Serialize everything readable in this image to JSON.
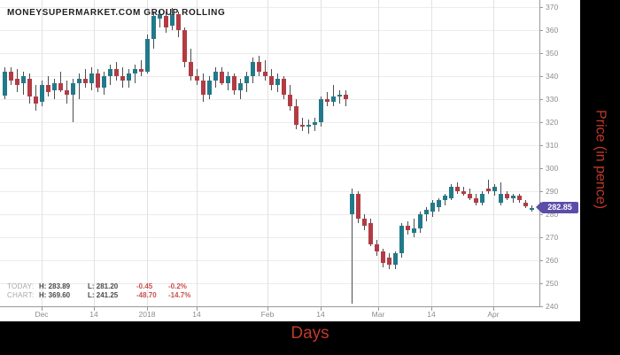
{
  "title": "MONEYSUPERMARKET.COM GROUP ROLLING",
  "price_badge": {
    "value": "282.85"
  },
  "stats": {
    "rows": [
      {
        "label": "TODAY:",
        "high": "H: 283.89",
        "low": "L: 281.20",
        "change": "-0.45",
        "percent": "-0.2%"
      },
      {
        "label": "CHART:",
        "high": "H: 369.60",
        "low": "L: 241.25",
        "change": "-48.70",
        "percent": "-14.7%"
      }
    ]
  },
  "axes": {
    "x_label": "Days",
    "y_label": "Price (in pence)"
  },
  "colors": {
    "up": "#217a8a",
    "down": "#b23b44",
    "badge": "#5b4ea8",
    "axis_text": "#8c8c8c",
    "accent_red_text": "#c0392b",
    "stat_change_red": "#c94f4f"
  },
  "chart_data": {
    "type": "candlestick",
    "title": "MONEYSUPERMARKET.COM GROUP ROLLING",
    "xlabel": "Days",
    "ylabel": "Price (in pence)",
    "ylim": [
      240,
      370
    ],
    "grid": true,
    "last_price": 282.85,
    "chart_high": 369.6,
    "chart_low": 241.25,
    "today_high": 283.89,
    "today_low": 281.2,
    "y_ticks": [
      240,
      250,
      260,
      270,
      280,
      290,
      300,
      310,
      320,
      330,
      340,
      350,
      360,
      370
    ],
    "x_ticks": [
      {
        "label": "Dec",
        "x": 47
      },
      {
        "label": "14",
        "x": 106
      },
      {
        "label": "2018",
        "x": 166
      },
      {
        "label": "14",
        "x": 222
      },
      {
        "label": "Feb",
        "x": 302
      },
      {
        "label": "14",
        "x": 362
      },
      {
        "label": "Mar",
        "x": 427
      },
      {
        "label": "14",
        "x": 487
      },
      {
        "label": "Apr",
        "x": 557
      }
    ],
    "candles_format": [
      "open",
      "high",
      "low",
      "close"
    ],
    "candles": [
      [
        331.55,
        344,
        330,
        342
      ],
      [
        342,
        344,
        336,
        338
      ],
      [
        339,
        343,
        333,
        336
      ],
      [
        337,
        342,
        332,
        340
      ],
      [
        339,
        341,
        328,
        331
      ],
      [
        331,
        336,
        325,
        328
      ],
      [
        329,
        338,
        327,
        336
      ],
      [
        336,
        340,
        331,
        333
      ],
      [
        334,
        339,
        330,
        337
      ],
      [
        337,
        342,
        333,
        334
      ],
      [
        334,
        338,
        328,
        332
      ],
      [
        332,
        339,
        320,
        337
      ],
      [
        337,
        341,
        330,
        339
      ],
      [
        339,
        343,
        335,
        337
      ],
      [
        337,
        344,
        334,
        341
      ],
      [
        341,
        343,
        333,
        335
      ],
      [
        335,
        342,
        332,
        340
      ],
      [
        340,
        345,
        336,
        343
      ],
      [
        343,
        346,
        338,
        340
      ],
      [
        340,
        344,
        335,
        338
      ],
      [
        338,
        343,
        335,
        341
      ],
      [
        341,
        345,
        337,
        343
      ],
      [
        343,
        347,
        340,
        342
      ],
      [
        342,
        358,
        341,
        356
      ],
      [
        356,
        368,
        352,
        366
      ],
      [
        365,
        369,
        361,
        367
      ],
      [
        366,
        368,
        359,
        361
      ],
      [
        362,
        369.6,
        360,
        367
      ],
      [
        367,
        368,
        357,
        360
      ],
      [
        360,
        361,
        344,
        346
      ],
      [
        346,
        352,
        338,
        340
      ],
      [
        340,
        343,
        336,
        338
      ],
      [
        338,
        341,
        329,
        332
      ],
      [
        332,
        340,
        330,
        338
      ],
      [
        338,
        344,
        335,
        342
      ],
      [
        342,
        344,
        336,
        337
      ],
      [
        337,
        342,
        334,
        340
      ],
      [
        340,
        341,
        332,
        334
      ],
      [
        334,
        339,
        330,
        337
      ],
      [
        337,
        342,
        333,
        340
      ],
      [
        340,
        348,
        337,
        346
      ],
      [
        346,
        349,
        340,
        342
      ],
      [
        342,
        347,
        338,
        340
      ],
      [
        340,
        343,
        334,
        336
      ],
      [
        336,
        341,
        333,
        339
      ],
      [
        339,
        340,
        330,
        332
      ],
      [
        332,
        336,
        325,
        327
      ],
      [
        327,
        330,
        317,
        319
      ],
      [
        319,
        322,
        316,
        318
      ],
      [
        318,
        321,
        315,
        319
      ],
      [
        319,
        322,
        316,
        320
      ],
      [
        320,
        331,
        318,
        330
      ],
      [
        330,
        333,
        327,
        329
      ],
      [
        329,
        336,
        327,
        331
      ],
      [
        331,
        334,
        328,
        332
      ],
      [
        332,
        334,
        327,
        330
      ],
      [
        280,
        291,
        241.25,
        289
      ],
      [
        289,
        290,
        276,
        278
      ],
      [
        278,
        280,
        273,
        275
      ],
      [
        276,
        278,
        266,
        267
      ],
      [
        267,
        269,
        262,
        264
      ],
      [
        264,
        265,
        257,
        259
      ],
      [
        261,
        263,
        256,
        258
      ],
      [
        258,
        264,
        256,
        263
      ],
      [
        263,
        276,
        261,
        275
      ],
      [
        275,
        277,
        271,
        273
      ],
      [
        272,
        278,
        270,
        274
      ],
      [
        274,
        281,
        272,
        280
      ],
      [
        280,
        283,
        277,
        282
      ],
      [
        281,
        286,
        279,
        285
      ],
      [
        283,
        287,
        281,
        286
      ],
      [
        286,
        289,
        284,
        288
      ],
      [
        287,
        293,
        286,
        292
      ],
      [
        292,
        294,
        289,
        290
      ],
      [
        290,
        292,
        288,
        289
      ],
      [
        289,
        291,
        286,
        287
      ],
      [
        287,
        289,
        284,
        285
      ],
      [
        285,
        290,
        284,
        289
      ],
      [
        291,
        295,
        289,
        290
      ],
      [
        290,
        293,
        288,
        292
      ],
      [
        285,
        294,
        284,
        289
      ],
      [
        289,
        290,
        286,
        287
      ],
      [
        287,
        289,
        285,
        288
      ],
      [
        288,
        289,
        285,
        286
      ],
      [
        285,
        286,
        282.5,
        283.3
      ],
      [
        282,
        283.89,
        281.2,
        282.85
      ]
    ]
  }
}
